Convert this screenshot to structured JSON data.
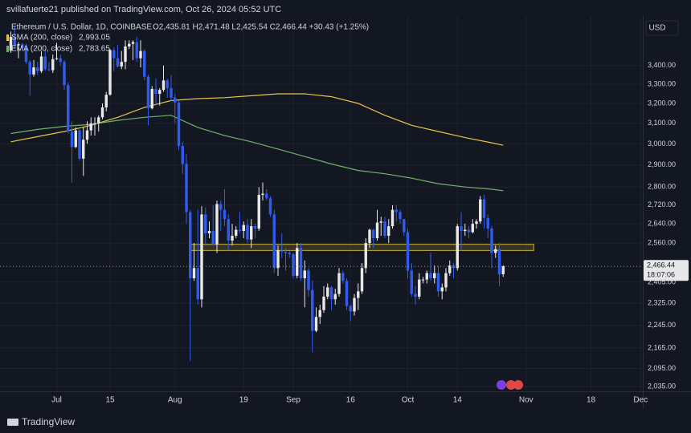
{
  "header": {
    "publisher": "svillafuerte21 published on TradingView.com, Oct 26, 2024 05:52 UTC",
    "symbol": "Ethereum / U.S. Dollar, 1D, COINBASE",
    "ohlc": "O2,435.81 H2,471.48 L2,425.54 C2,466.44 +30.43 (+1.25%)",
    "currency": "USD"
  },
  "footer": {
    "brand": "TradingView"
  },
  "chart_data": {
    "type": "candlestick",
    "log_scale": true,
    "grid": true,
    "up_color": "#e8e8e8",
    "down_color": "#2f5cf0",
    "x": [
      "2024-06-19",
      "2024-06-20",
      "2024-06-21",
      "2024-06-22",
      "2024-06-23",
      "2024-06-24",
      "2024-06-25",
      "2024-06-26",
      "2024-06-27",
      "2024-06-28",
      "2024-06-29",
      "2024-06-30",
      "2024-07-01",
      "2024-07-02",
      "2024-07-03",
      "2024-07-04",
      "2024-07-05",
      "2024-07-06",
      "2024-07-07",
      "2024-07-08",
      "2024-07-09",
      "2024-07-10",
      "2024-07-11",
      "2024-07-12",
      "2024-07-13",
      "2024-07-14",
      "2024-07-15",
      "2024-07-16",
      "2024-07-17",
      "2024-07-18",
      "2024-07-19",
      "2024-07-20",
      "2024-07-21",
      "2024-07-22",
      "2024-07-23",
      "2024-07-24",
      "2024-07-25",
      "2024-07-26",
      "2024-07-27",
      "2024-07-28",
      "2024-07-29",
      "2024-07-30",
      "2024-07-31",
      "2024-08-01",
      "2024-08-02",
      "2024-08-03",
      "2024-08-04",
      "2024-08-05",
      "2024-08-06",
      "2024-08-07",
      "2024-08-08",
      "2024-08-09",
      "2024-08-10",
      "2024-08-11",
      "2024-08-12",
      "2024-08-13",
      "2024-08-14",
      "2024-08-15",
      "2024-08-16",
      "2024-08-17",
      "2024-08-18",
      "2024-08-19",
      "2024-08-20",
      "2024-08-21",
      "2024-08-22",
      "2024-08-23",
      "2024-08-24",
      "2024-08-25",
      "2024-08-26",
      "2024-08-27",
      "2024-08-28",
      "2024-08-29",
      "2024-08-30",
      "2024-08-31",
      "2024-09-01",
      "2024-09-02",
      "2024-09-03",
      "2024-09-04",
      "2024-09-05",
      "2024-09-06",
      "2024-09-07",
      "2024-09-08",
      "2024-09-09",
      "2024-09-10",
      "2024-09-11",
      "2024-09-12",
      "2024-09-13",
      "2024-09-14",
      "2024-09-15",
      "2024-09-16",
      "2024-09-17",
      "2024-09-18",
      "2024-09-19",
      "2024-09-20",
      "2024-09-21",
      "2024-09-22",
      "2024-09-23",
      "2024-09-24",
      "2024-09-25",
      "2024-09-26",
      "2024-09-27",
      "2024-09-28",
      "2024-09-29",
      "2024-09-30",
      "2024-10-01",
      "2024-10-02",
      "2024-10-03",
      "2024-10-04",
      "2024-10-05",
      "2024-10-06",
      "2024-10-07",
      "2024-10-08",
      "2024-10-09",
      "2024-10-10",
      "2024-10-11",
      "2024-10-12",
      "2024-10-13",
      "2024-10-14",
      "2024-10-15",
      "2024-10-16",
      "2024-10-17",
      "2024-10-18",
      "2024-10-19",
      "2024-10-20",
      "2024-10-21",
      "2024-10-22",
      "2024-10-23",
      "2024-10-24",
      "2024-10-25",
      "2024-10-26"
    ],
    "open": [
      3482,
      3560,
      3512,
      3518,
      3496,
      3420,
      3352,
      3390,
      3370,
      3450,
      3380,
      3375,
      3435,
      3440,
      3420,
      3295,
      3060,
      2985,
      3065,
      2930,
      3020,
      3065,
      3100,
      3100,
      3130,
      3180,
      3245,
      3485,
      3440,
      3395,
      3420,
      3505,
      3520,
      3530,
      3440,
      3480,
      3340,
      3175,
      3275,
      3250,
      3270,
      3320,
      3280,
      3230,
      3205,
      2990,
      2905,
      2690,
      2420,
      2460,
      2340,
      2680,
      2600,
      2610,
      2555,
      2725,
      2700,
      2660,
      2570,
      2590,
      2615,
      2610,
      2635,
      2575,
      2630,
      2620,
      2765,
      2770,
      2750,
      2680,
      2460,
      2530,
      2525,
      2520,
      2515,
      2430,
      2540,
      2420,
      2450,
      2375,
      2225,
      2275,
      2300,
      2350,
      2385,
      2340,
      2360,
      2440,
      2410,
      2315,
      2295,
      2345,
      2370,
      2460,
      2560,
      2615,
      2580,
      2645,
      2650,
      2590,
      2630,
      2700,
      2690,
      2660,
      2605,
      2450,
      2360,
      2350,
      2415,
      2415,
      2440,
      2420,
      2440,
      2370,
      2385,
      2440,
      2470,
      2460,
      2630,
      2610,
      2615,
      2605,
      2640,
      2650,
      2745,
      2665,
      2620,
      2520,
      2535,
      2435.81
    ],
    "high": [
      3590,
      3625,
      3530,
      3525,
      3520,
      3430,
      3430,
      3420,
      3480,
      3490,
      3420,
      3460,
      3525,
      3460,
      3430,
      3310,
      3110,
      3080,
      3070,
      3080,
      3110,
      3130,
      3130,
      3140,
      3200,
      3260,
      3490,
      3500,
      3515,
      3480,
      3540,
      3540,
      3540,
      3560,
      3540,
      3490,
      3350,
      3290,
      3330,
      3280,
      3400,
      3330,
      3350,
      3250,
      3215,
      3010,
      2950,
      2700,
      2560,
      2700,
      2715,
      2710,
      2650,
      2720,
      2740,
      2740,
      2790,
      2680,
      2640,
      2630,
      2690,
      2650,
      2660,
      2660,
      2640,
      2800,
      2820,
      2790,
      2760,
      2700,
      2550,
      2600,
      2540,
      2530,
      2520,
      2560,
      2560,
      2490,
      2460,
      2410,
      2310,
      2320,
      2390,
      2400,
      2390,
      2380,
      2460,
      2450,
      2420,
      2320,
      2360,
      2400,
      2480,
      2580,
      2620,
      2620,
      2700,
      2670,
      2670,
      2660,
      2720,
      2720,
      2700,
      2660,
      2620,
      2480,
      2390,
      2440,
      2425,
      2450,
      2520,
      2470,
      2470,
      2400,
      2460,
      2490,
      2480,
      2640,
      2690,
      2640,
      2630,
      2660,
      2660,
      2760,
      2765,
      2680,
      2630,
      2550,
      2560,
      2471.48
    ],
    "low": [
      3470,
      3495,
      3440,
      3485,
      3410,
      3240,
      3340,
      3350,
      3360,
      3370,
      3370,
      3360,
      3430,
      3400,
      3270,
      3050,
      2820,
      2980,
      2920,
      2850,
      3000,
      3040,
      3040,
      3060,
      3120,
      3160,
      3240,
      3370,
      3390,
      3380,
      3380,
      3490,
      3430,
      3420,
      3390,
      3320,
      3090,
      3170,
      3190,
      3190,
      3260,
      3230,
      3210,
      3100,
      2970,
      2860,
      2640,
      2120,
      2410,
      2320,
      2310,
      2550,
      2580,
      2550,
      2520,
      2610,
      2630,
      2530,
      2550,
      2580,
      2600,
      2580,
      2560,
      2540,
      2580,
      2610,
      2740,
      2740,
      2670,
      2440,
      2430,
      2500,
      2450,
      2500,
      2420,
      2420,
      2410,
      2310,
      2350,
      2150,
      2220,
      2250,
      2290,
      2340,
      2300,
      2320,
      2350,
      2400,
      2300,
      2260,
      2280,
      2300,
      2360,
      2440,
      2540,
      2540,
      2570,
      2590,
      2580,
      2560,
      2620,
      2650,
      2640,
      2590,
      2420,
      2350,
      2320,
      2340,
      2400,
      2400,
      2410,
      2400,
      2350,
      2340,
      2370,
      2430,
      2420,
      2450,
      2530,
      2590,
      2580,
      2600,
      2620,
      2640,
      2620,
      2580,
      2460,
      2500,
      2390,
      2425.54
    ],
    "close": [
      3560,
      3512,
      3518,
      3496,
      3420,
      3352,
      3390,
      3370,
      3450,
      3380,
      3375,
      3435,
      3440,
      3420,
      3295,
      3060,
      2985,
      3065,
      2930,
      3020,
      3065,
      3100,
      3100,
      3130,
      3180,
      3245,
      3485,
      3440,
      3395,
      3420,
      3505,
      3520,
      3530,
      3440,
      3480,
      3340,
      3175,
      3275,
      3250,
      3270,
      3320,
      3280,
      3230,
      3205,
      2990,
      2905,
      2690,
      2420,
      2460,
      2340,
      2680,
      2600,
      2610,
      2555,
      2725,
      2700,
      2660,
      2570,
      2590,
      2615,
      2610,
      2635,
      2575,
      2630,
      2620,
      2765,
      2770,
      2750,
      2680,
      2460,
      2530,
      2525,
      2520,
      2515,
      2430,
      2540,
      2420,
      2450,
      2375,
      2225,
      2275,
      2300,
      2350,
      2385,
      2340,
      2360,
      2440,
      2410,
      2315,
      2295,
      2345,
      2370,
      2460,
      2560,
      2615,
      2580,
      2645,
      2650,
      2590,
      2630,
      2700,
      2690,
      2660,
      2605,
      2450,
      2360,
      2350,
      2415,
      2415,
      2440,
      2420,
      2440,
      2370,
      2385,
      2440,
      2470,
      2460,
      2630,
      2610,
      2615,
      2605,
      2640,
      2650,
      2745,
      2665,
      2620,
      2520,
      2535,
      2435,
      2466.44
    ],
    "overlays": [
      {
        "name": "SMA (200, close)",
        "color": "#e5c54c",
        "value_label": "2,993.05",
        "x": [
          "2024-06-19",
          "2024-06-26",
          "2024-07-03",
          "2024-07-10",
          "2024-07-17",
          "2024-07-24",
          "2024-07-31",
          "2024-08-07",
          "2024-08-14",
          "2024-08-21",
          "2024-08-28",
          "2024-09-04",
          "2024-09-11",
          "2024-09-18",
          "2024-09-25",
          "2024-10-02",
          "2024-10-09",
          "2024-10-16",
          "2024-10-23",
          "2024-10-26"
        ],
        "values": [
          3010,
          3035,
          3060,
          3090,
          3130,
          3180,
          3215,
          3225,
          3230,
          3240,
          3250,
          3250,
          3235,
          3200,
          3140,
          3090,
          3060,
          3030,
          3005,
          2993.05
        ]
      },
      {
        "name": "EMA (200, close)",
        "color": "#6fb36a",
        "value_label": "2,783.65",
        "x": [
          "2024-06-19",
          "2024-06-26",
          "2024-07-03",
          "2024-07-10",
          "2024-07-17",
          "2024-07-24",
          "2024-07-31",
          "2024-08-07",
          "2024-08-14",
          "2024-08-21",
          "2024-08-28",
          "2024-09-04",
          "2024-09-11",
          "2024-09-18",
          "2024-09-25",
          "2024-10-02",
          "2024-10-09",
          "2024-10-16",
          "2024-10-23",
          "2024-10-26"
        ],
        "values": [
          3050,
          3070,
          3085,
          3095,
          3115,
          3130,
          3140,
          3080,
          3040,
          3010,
          2975,
          2940,
          2905,
          2875,
          2860,
          2840,
          2815,
          2800,
          2790,
          2783.65
        ]
      }
    ],
    "zone": {
      "x": [
        "2024-08-05",
        "2024-11-03"
      ],
      "y": [
        2530,
        2555
      ],
      "color": "#c8b43a"
    },
    "last_price": {
      "value": 2466.44,
      "label": "2,466.44",
      "countdown": "18:07:06"
    },
    "xlim": [
      "2024-06-17",
      "2024-12-02"
    ],
    "xticks": [
      {
        "value": "2024-07-01",
        "label": "Jul"
      },
      {
        "value": "2024-07-15",
        "label": "15"
      },
      {
        "value": "2024-08-01",
        "label": "Aug"
      },
      {
        "value": "2024-08-19",
        "label": "19"
      },
      {
        "value": "2024-09-01",
        "label": "Sep"
      },
      {
        "value": "2024-09-16",
        "label": "16"
      },
      {
        "value": "2024-10-01",
        "label": "Oct"
      },
      {
        "value": "2024-10-14",
        "label": "14"
      },
      {
        "value": "2024-11-01",
        "label": "Nov"
      },
      {
        "value": "2024-11-18",
        "label": "18"
      },
      {
        "value": "2024-12-01",
        "label": "Dec"
      }
    ],
    "ylim": [
      2020,
      3680
    ],
    "yticks": [
      {
        "value": 3400,
        "label": "3,400.00"
      },
      {
        "value": 3300,
        "label": "3,300.00"
      },
      {
        "value": 3200,
        "label": "3,200.00"
      },
      {
        "value": 3100,
        "label": "3,100.00"
      },
      {
        "value": 3000,
        "label": "3,000.00"
      },
      {
        "value": 2900,
        "label": "2,900.00"
      },
      {
        "value": 2800,
        "label": "2,800.00"
      },
      {
        "value": 2720,
        "label": "2,720.00"
      },
      {
        "value": 2640,
        "label": "2,640.00"
      },
      {
        "value": 2560,
        "label": "2,560.00"
      },
      {
        "value": 2405,
        "label": "2,405.00"
      },
      {
        "value": 2325,
        "label": "2,325.00"
      },
      {
        "value": 2245,
        "label": "2,245.00"
      },
      {
        "value": 2165,
        "label": "2,165.00"
      },
      {
        "value": 2095,
        "label": "2,095.00"
      },
      {
        "value": 2035,
        "label": "2,035.00"
      }
    ]
  }
}
